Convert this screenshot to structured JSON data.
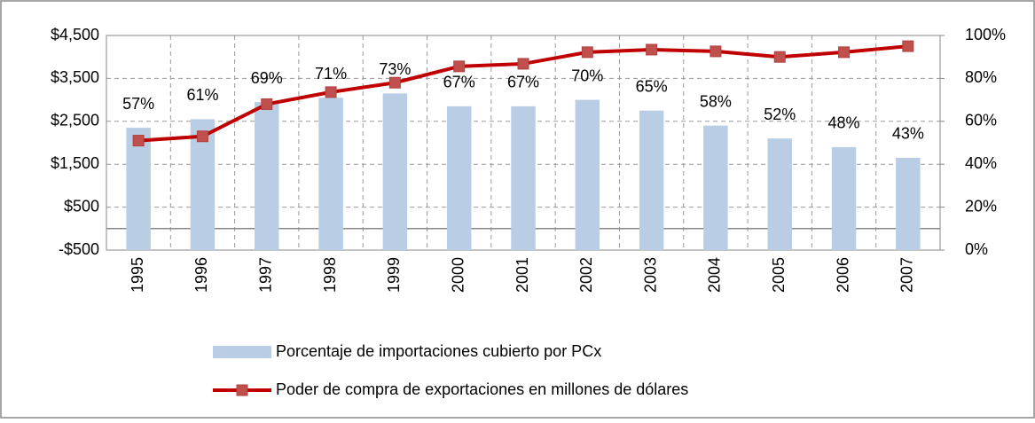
{
  "chart_data": {
    "type": "bar-line",
    "grid": true,
    "categories": [
      "1995",
      "1996",
      "1997",
      "1998",
      "1999",
      "2000",
      "2001",
      "2002",
      "2003",
      "2004",
      "2005",
      "2006",
      "2007"
    ],
    "series": [
      {
        "name": "Porcentaje de importaciones cubierto por PCx",
        "type": "bar",
        "axis": "y2",
        "color": "#b9cde5",
        "values": [
          57,
          61,
          69,
          71,
          73,
          67,
          67,
          70,
          65,
          58,
          52,
          48,
          43
        ],
        "value_labels": [
          "57%",
          "61%",
          "69%",
          "71%",
          "73%",
          "67%",
          "67%",
          "70%",
          "65%",
          "58%",
          "52%",
          "48%",
          "43%"
        ]
      },
      {
        "name": "Poder de compra de exportaciones en millones de dólares",
        "type": "line",
        "axis": "y",
        "color": "#c00000",
        "marker_color": "#c0504d",
        "values": [
          2050,
          2150,
          2900,
          3180,
          3400,
          3780,
          3840,
          4110,
          4170,
          4130,
          4000,
          4110,
          4250
        ]
      }
    ],
    "ylim": [
      -500,
      4500
    ],
    "yticks": [
      {
        "value": -500,
        "label": "-$500"
      },
      {
        "value": 500,
        "label": "$500"
      },
      {
        "value": 1500,
        "label": "$1,500"
      },
      {
        "value": 2500,
        "label": "$2,500"
      },
      {
        "value": 3500,
        "label": "$3,500"
      },
      {
        "value": 4500,
        "label": "$4,500"
      }
    ],
    "y2lim": [
      0,
      100
    ],
    "y2ticks": [
      {
        "value": 0,
        "label": "0%"
      },
      {
        "value": 20,
        "label": "20%"
      },
      {
        "value": 40,
        "label": "40%"
      },
      {
        "value": 60,
        "label": "60%"
      },
      {
        "value": 80,
        "label": "80%"
      },
      {
        "value": 100,
        "label": "100%"
      }
    ]
  }
}
